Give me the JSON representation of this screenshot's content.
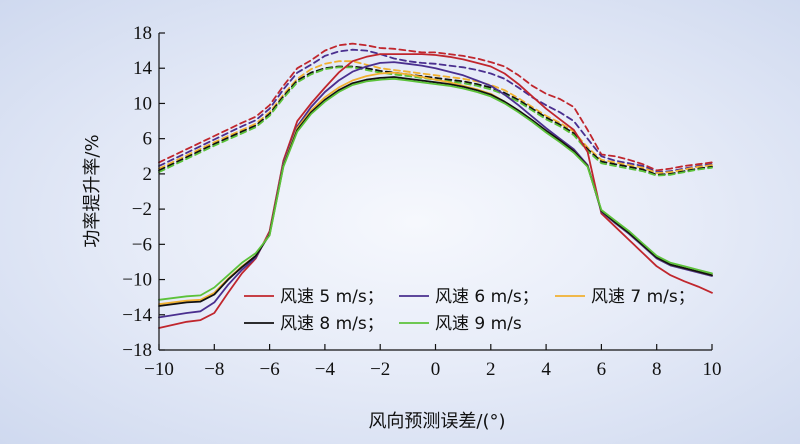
{
  "chart_data": {
    "type": "line",
    "xlabel": "风向预测误差/(°)",
    "ylabel": "功率提升率/%",
    "xlim": [
      -10,
      10
    ],
    "ylim": [
      -18,
      18
    ],
    "xticks": [
      -10,
      -8,
      -6,
      -4,
      -2,
      0,
      2,
      4,
      6,
      8,
      10
    ],
    "yticks": [
      -18,
      -14,
      -10,
      -6,
      -2,
      2,
      6,
      10,
      14,
      18
    ],
    "grid": false,
    "legend_position": "lower-center",
    "legend_entries": [
      {
        "label": "风速 5 m/s；",
        "color": "#c0262d"
      },
      {
        "label": "风速 6 m/s；",
        "color": "#4a2f8f"
      },
      {
        "label": "风速 7 m/s；",
        "color": "#f0b030"
      },
      {
        "label": "风速 8 m/s；",
        "color": "#111111"
      },
      {
        "label": "风速 9 m/s",
        "color": "#5cc23a"
      }
    ],
    "series": [
      {
        "color": "#c0262d",
        "style": "solid",
        "x": [
          -10,
          -9,
          -8.5,
          -8,
          -7.5,
          -7,
          -6.5,
          -6,
          -5.5,
          -5,
          -4.5,
          -4,
          -3.5,
          -3,
          -2.5,
          -2,
          -1.5,
          -1,
          -0.5,
          0,
          0.5,
          1,
          1.5,
          2,
          2.5,
          3,
          3.5,
          4,
          4.5,
          5,
          5.5,
          6,
          6.5,
          7,
          7.5,
          8,
          8.5,
          9,
          9.5,
          10
        ],
        "y": [
          -15.5,
          -14.8,
          -14.6,
          -13.8,
          -11.5,
          -9.3,
          -7.6,
          -4.5,
          3.5,
          8.0,
          10.0,
          11.8,
          13.5,
          14.8,
          15.3,
          15.6,
          15.6,
          15.6,
          15.6,
          15.5,
          15.3,
          15.0,
          14.6,
          14.2,
          13.4,
          12.2,
          10.8,
          9.4,
          8.2,
          7.0,
          4.5,
          -2.5,
          -4.0,
          -5.5,
          -7.0,
          -8.5,
          -9.5,
          -10.2,
          -10.8,
          -11.5
        ]
      },
      {
        "color": "#4a2f8f",
        "style": "solid",
        "x": [
          -10,
          -9,
          -8.5,
          -8,
          -7.5,
          -7,
          -6.5,
          -6,
          -5.5,
          -5,
          -4.5,
          -4,
          -3.5,
          -3,
          -2.5,
          -2,
          -1.5,
          -1,
          -0.5,
          0,
          0.5,
          1,
          1.5,
          2,
          2.5,
          3,
          3.5,
          4,
          4.5,
          5,
          5.5,
          6,
          6.5,
          7,
          7.5,
          8,
          8.5,
          9,
          9.5,
          10
        ],
        "y": [
          -14.3,
          -13.8,
          -13.6,
          -12.6,
          -10.6,
          -8.9,
          -7.5,
          -4.7,
          3.2,
          7.4,
          9.6,
          11.3,
          12.6,
          13.6,
          14.2,
          14.6,
          14.7,
          14.5,
          14.3,
          14.0,
          13.6,
          13.2,
          12.6,
          12.0,
          11.0,
          9.8,
          8.5,
          7.2,
          6.0,
          4.8,
          3.0,
          -2.3,
          -3.6,
          -4.8,
          -6.2,
          -7.6,
          -8.4,
          -8.8,
          -9.2,
          -9.6
        ]
      },
      {
        "color": "#f0b030",
        "style": "solid",
        "x": [
          -10,
          -9,
          -8.5,
          -8,
          -7.5,
          -7,
          -6.5,
          -6,
          -5.5,
          -5,
          -4.5,
          -4,
          -3.5,
          -3,
          -2.5,
          -2,
          -1.5,
          -1,
          -0.5,
          0,
          0.5,
          1,
          1.5,
          2,
          2.5,
          3,
          3.5,
          4,
          4.5,
          5,
          5.5,
          6,
          6.5,
          7,
          7.5,
          8,
          8.5,
          9,
          9.5,
          10
        ],
        "y": [
          -12.8,
          -12.4,
          -12.3,
          -11.5,
          -9.9,
          -8.5,
          -7.3,
          -4.8,
          3.0,
          7.2,
          9.2,
          10.7,
          11.8,
          12.6,
          13.1,
          13.4,
          13.5,
          13.3,
          13.0,
          12.7,
          12.4,
          12.0,
          11.6,
          11.1,
          10.2,
          9.2,
          8.1,
          6.9,
          5.8,
          4.6,
          2.9,
          -2.2,
          -3.5,
          -4.7,
          -6.1,
          -7.5,
          -8.3,
          -8.7,
          -9.1,
          -9.5
        ]
      },
      {
        "color": "#111111",
        "style": "solid",
        "x": [
          -10,
          -9,
          -8.5,
          -8,
          -7.5,
          -7,
          -6.5,
          -6,
          -5.5,
          -5,
          -4.5,
          -4,
          -3.5,
          -3,
          -2.5,
          -2,
          -1.5,
          -1,
          -0.5,
          0,
          0.5,
          1,
          1.5,
          2,
          2.5,
          3,
          3.5,
          4,
          4.5,
          5,
          5.5,
          6,
          6.5,
          7,
          7.5,
          8,
          8.5,
          9,
          9.5,
          10
        ],
        "y": [
          -13.0,
          -12.6,
          -12.5,
          -11.7,
          -10.0,
          -8.6,
          -7.3,
          -4.9,
          2.9,
          7.0,
          9.0,
          10.4,
          11.5,
          12.3,
          12.7,
          12.9,
          13.0,
          12.8,
          12.6,
          12.4,
          12.2,
          11.9,
          11.5,
          11.0,
          10.2,
          9.2,
          8.1,
          6.9,
          5.8,
          4.6,
          2.9,
          -2.2,
          -3.5,
          -4.7,
          -6.1,
          -7.5,
          -8.3,
          -8.7,
          -9.1,
          -9.5
        ]
      },
      {
        "color": "#5cc23a",
        "style": "solid",
        "x": [
          -10,
          -9,
          -8.5,
          -8,
          -7.5,
          -7,
          -6.5,
          -6,
          -5.5,
          -5,
          -4.5,
          -4,
          -3.5,
          -3,
          -2.5,
          -2,
          -1.5,
          -1,
          -0.5,
          0,
          0.5,
          1,
          1.5,
          2,
          2.5,
          3,
          3.5,
          4,
          4.5,
          5,
          5.5,
          6,
          6.5,
          7,
          7.5,
          8,
          8.5,
          9,
          9.5,
          10
        ],
        "y": [
          -12.3,
          -11.9,
          -11.8,
          -10.9,
          -9.5,
          -8.1,
          -7.0,
          -5.0,
          2.8,
          6.8,
          8.8,
          10.2,
          11.3,
          12.1,
          12.5,
          12.7,
          12.8,
          12.6,
          12.4,
          12.2,
          12.0,
          11.7,
          11.3,
          10.8,
          10.0,
          9.0,
          7.9,
          6.7,
          5.6,
          4.4,
          2.8,
          -2.1,
          -3.3,
          -4.5,
          -5.9,
          -7.3,
          -8.1,
          -8.5,
          -8.9,
          -9.3
        ]
      },
      {
        "color": "#c0262d",
        "style": "dashed",
        "x": [
          -10,
          -9,
          -8,
          -7,
          -6.5,
          -6,
          -5.5,
          -5,
          -4.5,
          -4,
          -3.5,
          -3,
          -2.5,
          -2,
          -1.5,
          -1,
          -0.5,
          0,
          0.5,
          1,
          1.5,
          2,
          2.5,
          3,
          3.5,
          4,
          4.5,
          5,
          5.5,
          6,
          6.5,
          7,
          7.5,
          8,
          8.5,
          9,
          9.5,
          10
        ],
        "y": [
          3.3,
          4.8,
          6.3,
          7.8,
          8.5,
          9.8,
          12.0,
          14.0,
          14.9,
          16.0,
          16.6,
          16.8,
          16.6,
          16.3,
          16.2,
          16.0,
          15.8,
          15.8,
          15.6,
          15.4,
          15.1,
          14.7,
          14.2,
          13.2,
          12.0,
          11.1,
          10.5,
          9.6,
          7.0,
          4.2,
          4.0,
          3.6,
          3.1,
          2.4,
          2.6,
          2.9,
          3.1,
          3.3
        ]
      },
      {
        "color": "#4a2f8f",
        "style": "dashed",
        "x": [
          -10,
          -9,
          -8,
          -7,
          -6.5,
          -6,
          -5.5,
          -5,
          -4.5,
          -4,
          -3.5,
          -3,
          -2.5,
          -2,
          -1.5,
          -1,
          -0.5,
          0,
          0.5,
          1,
          1.5,
          2,
          2.5,
          3,
          3.5,
          4,
          4.5,
          5,
          5.5,
          6,
          6.5,
          7,
          7.5,
          8,
          8.5,
          9,
          9.5,
          10
        ],
        "y": [
          2.9,
          4.4,
          5.9,
          7.4,
          8.1,
          9.4,
          11.6,
          13.5,
          14.4,
          15.4,
          15.9,
          16.1,
          16.0,
          15.6,
          15.1,
          14.8,
          14.6,
          14.5,
          14.3,
          14.1,
          13.8,
          13.4,
          12.8,
          11.8,
          10.7,
          9.8,
          9.0,
          8.0,
          6.0,
          4.0,
          3.5,
          3.2,
          2.9,
          2.2,
          2.3,
          2.6,
          2.9,
          3.1
        ]
      },
      {
        "color": "#f0b030",
        "style": "dashed",
        "x": [
          -10,
          -9,
          -8,
          -7,
          -6.5,
          -6,
          -5.5,
          -5,
          -4.5,
          -4,
          -3.5,
          -3,
          -2.5,
          -2,
          -1.5,
          -1,
          -0.5,
          0,
          0.5,
          1,
          1.5,
          2,
          2.5,
          3,
          3.5,
          4,
          4.5,
          5,
          5.5,
          6,
          6.5,
          7,
          7.5,
          8,
          8.5,
          9,
          9.5,
          10
        ],
        "y": [
          2.6,
          4.1,
          5.6,
          7.0,
          7.7,
          9.0,
          11.0,
          12.8,
          13.9,
          14.5,
          14.8,
          14.8,
          14.4,
          14.0,
          13.8,
          13.6,
          13.4,
          13.2,
          13.0,
          12.8,
          12.5,
          12.1,
          11.5,
          10.6,
          9.6,
          8.6,
          7.8,
          6.8,
          5.0,
          3.6,
          3.3,
          3.0,
          2.7,
          2.1,
          2.2,
          2.5,
          2.8,
          3.0
        ]
      },
      {
        "color": "#111111",
        "style": "dashed",
        "x": [
          -10,
          -9,
          -8,
          -7,
          -6.5,
          -6,
          -5.5,
          -5,
          -4.5,
          -4,
          -3.5,
          -3,
          -2.5,
          -2,
          -1.5,
          -1,
          -0.5,
          0,
          0.5,
          1,
          1.5,
          2,
          2.5,
          3,
          3.5,
          4,
          4.5,
          5,
          5.5,
          6,
          6.5,
          7,
          7.5,
          8,
          8.5,
          9,
          9.5,
          10
        ],
        "y": [
          2.4,
          3.9,
          5.4,
          6.8,
          7.5,
          8.8,
          10.8,
          12.6,
          13.5,
          14.0,
          14.2,
          14.2,
          14.0,
          13.7,
          13.5,
          13.3,
          13.1,
          12.9,
          12.7,
          12.5,
          12.2,
          11.8,
          11.2,
          10.4,
          9.4,
          8.4,
          7.6,
          6.6,
          4.8,
          3.4,
          3.1,
          2.8,
          2.5,
          1.9,
          2.0,
          2.3,
          2.6,
          2.8
        ]
      },
      {
        "color": "#5cc23a",
        "style": "dashed",
        "x": [
          -10,
          -9,
          -8,
          -7,
          -6.5,
          -6,
          -5.5,
          -5,
          -4.5,
          -4,
          -3.5,
          -3,
          -2.5,
          -2,
          -1.5,
          -1,
          -0.5,
          0,
          0.5,
          1,
          1.5,
          2,
          2.5,
          3,
          3.5,
          4,
          4.5,
          5,
          5.5,
          6,
          6.5,
          7,
          7.5,
          8,
          8.5,
          9,
          9.5,
          10
        ],
        "y": [
          2.2,
          3.7,
          5.2,
          6.6,
          7.3,
          8.6,
          10.6,
          12.4,
          13.3,
          13.9,
          14.1,
          14.1,
          13.8,
          13.5,
          13.3,
          13.1,
          12.9,
          12.7,
          12.5,
          12.3,
          12.0,
          11.6,
          11.0,
          10.2,
          9.2,
          8.2,
          7.4,
          6.4,
          4.6,
          3.2,
          2.9,
          2.6,
          2.3,
          1.8,
          1.9,
          2.2,
          2.5,
          2.7
        ]
      }
    ]
  }
}
